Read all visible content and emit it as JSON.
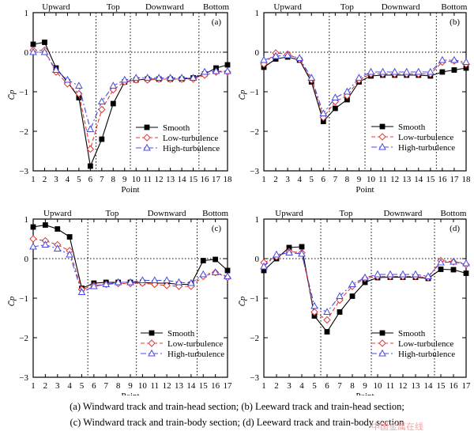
{
  "figure": {
    "caption_line1": "(a)  Windward track and train-head section; (b) Leeward track and train-head section;",
    "caption_line2": "(c)  Windward track and train-body section; (d) Leeward track and train-body section",
    "watermark": "中国金属在线",
    "colors": {
      "smooth": "#000000",
      "low": "#e03a3a",
      "high": "#4a4ae0",
      "ref": "#000000"
    }
  },
  "chart_data": [
    {
      "type": "line",
      "panel_label": "(a)",
      "xlabel": "Point",
      "ylabel": "C̄p",
      "x": [
        1,
        2,
        3,
        4,
        5,
        6,
        7,
        8,
        9,
        10,
        11,
        12,
        13,
        14,
        15,
        16,
        17,
        18
      ],
      "xlim": [
        1,
        18
      ],
      "ylim": [
        -3,
        1
      ],
      "yticks": [
        "1",
        "0",
        "−1",
        "−2",
        "−3"
      ],
      "dividers": [
        6.5,
        9.5,
        15.5
      ],
      "regions": [
        "Upward",
        "Top",
        "Downward",
        "Bottom"
      ],
      "region_centers": [
        3.0,
        8.0,
        12.5,
        17.0
      ],
      "legend_position": "center-right",
      "series": [
        {
          "name": "Smooth",
          "marker": "square",
          "dash": "solid",
          "values": [
            0.2,
            0.25,
            -0.4,
            -0.75,
            -1.15,
            -2.88,
            -2.2,
            -1.3,
            -0.75,
            -0.7,
            -0.68,
            -0.68,
            -0.68,
            -0.68,
            -0.65,
            -0.55,
            -0.4,
            -0.32
          ]
        },
        {
          "name": "Low-turbulence",
          "marker": "diamond",
          "dash": "dashed",
          "values": [
            0.05,
            0.05,
            -0.5,
            -0.8,
            -1.05,
            -2.45,
            -1.45,
            -0.95,
            -0.75,
            -0.7,
            -0.7,
            -0.68,
            -0.68,
            -0.68,
            -0.68,
            -0.58,
            -0.5,
            -0.5
          ]
        },
        {
          "name": "High-turbulence",
          "marker": "triangle",
          "dash": "dashdot",
          "values": [
            0.0,
            0.0,
            -0.45,
            -0.7,
            -0.85,
            -1.95,
            -1.25,
            -0.85,
            -0.7,
            -0.65,
            -0.65,
            -0.65,
            -0.65,
            -0.65,
            -0.65,
            -0.5,
            -0.48,
            -0.48
          ]
        }
      ]
    },
    {
      "type": "line",
      "panel_label": "(b)",
      "xlabel": "Point",
      "ylabel": "C̄p",
      "x": [
        1,
        2,
        3,
        4,
        5,
        6,
        7,
        8,
        9,
        10,
        11,
        12,
        13,
        14,
        15,
        16,
        17,
        18
      ],
      "xlim": [
        1,
        18
      ],
      "ylim": [
        -3,
        1
      ],
      "yticks": [
        "1",
        "0",
        "−1",
        "−2",
        "−3"
      ],
      "dividers": [
        6.5,
        9.5,
        15.5
      ],
      "regions": [
        "Upward",
        "Top",
        "Downward",
        "Bottom"
      ],
      "region_centers": [
        3.0,
        8.0,
        12.5,
        17.0
      ],
      "legend_position": "lower-right",
      "series": [
        {
          "name": "Smooth",
          "marker": "square",
          "dash": "solid",
          "values": [
            -0.38,
            -0.17,
            -0.12,
            -0.2,
            -0.75,
            -1.75,
            -1.42,
            -1.2,
            -0.75,
            -0.6,
            -0.58,
            -0.58,
            -0.58,
            -0.58,
            -0.6,
            -0.5,
            -0.45,
            -0.4
          ]
        },
        {
          "name": "Low-turbulence",
          "marker": "diamond",
          "dash": "dashed",
          "values": [
            -0.3,
            -0.02,
            -0.05,
            -0.18,
            -0.7,
            -1.65,
            -1.25,
            -1.1,
            -0.7,
            -0.55,
            -0.55,
            -0.55,
            -0.55,
            -0.55,
            -0.55,
            -0.25,
            -0.22,
            -0.3
          ]
        },
        {
          "name": "High-turbulence",
          "marker": "triangle",
          "dash": "dashdot",
          "values": [
            -0.2,
            -0.1,
            -0.08,
            -0.15,
            -0.65,
            -1.55,
            -1.15,
            -1.0,
            -0.65,
            -0.5,
            -0.5,
            -0.5,
            -0.5,
            -0.5,
            -0.5,
            -0.2,
            -0.2,
            -0.25
          ]
        }
      ]
    },
    {
      "type": "line",
      "panel_label": "(c)",
      "xlabel": "Point",
      "ylabel": "C̄p",
      "x": [
        1,
        2,
        3,
        4,
        5,
        6,
        7,
        8,
        9,
        10,
        11,
        12,
        13,
        14,
        15,
        16,
        17
      ],
      "xlim": [
        1,
        17
      ],
      "ylim": [
        -3,
        1
      ],
      "yticks": [
        "1",
        "0",
        "−1",
        "−2",
        "−3"
      ],
      "dividers": [
        5.5,
        9.5,
        14.5
      ],
      "regions": [
        "Upward",
        "Top",
        "Downward",
        "Bottom"
      ],
      "region_centers": [
        3.0,
        7.5,
        12.0,
        16.0
      ],
      "legend_position": "lower-right",
      "series": [
        {
          "name": "Smooth",
          "marker": "square",
          "dash": "solid",
          "values": [
            0.8,
            0.85,
            0.75,
            0.55,
            -0.75,
            -0.62,
            -0.6,
            -0.6,
            -0.6,
            -0.6,
            -0.62,
            -0.62,
            -0.65,
            -0.65,
            -0.05,
            -0.02,
            -0.3
          ]
        },
        {
          "name": "Low-turbulence",
          "marker": "diamond",
          "dash": "dashed",
          "values": [
            0.5,
            0.45,
            0.35,
            0.2,
            -0.78,
            -0.68,
            -0.65,
            -0.63,
            -0.63,
            -0.62,
            -0.65,
            -0.68,
            -0.7,
            -0.7,
            -0.45,
            -0.35,
            -0.48
          ]
        },
        {
          "name": "High-turbulence",
          "marker": "triangle",
          "dash": "dashdot",
          "values": [
            0.3,
            0.35,
            0.25,
            0.1,
            -0.85,
            -0.7,
            -0.65,
            -0.6,
            -0.6,
            -0.55,
            -0.55,
            -0.55,
            -0.6,
            -0.62,
            -0.4,
            -0.35,
            -0.45
          ]
        }
      ]
    },
    {
      "type": "line",
      "panel_label": "(d)",
      "xlabel": "Point",
      "ylabel": "C̄p",
      "x": [
        1,
        2,
        3,
        4,
        5,
        6,
        7,
        8,
        9,
        10,
        11,
        12,
        13,
        14,
        15,
        16,
        17
      ],
      "xlim": [
        1,
        17
      ],
      "ylim": [
        -3,
        1
      ],
      "yticks": [
        "1",
        "0",
        "−1",
        "−2",
        "−3"
      ],
      "dividers": [
        5.5,
        9.5,
        14.5
      ],
      "regions": [
        "Upward",
        "Top",
        "Downward",
        "Bottom"
      ],
      "region_centers": [
        3.0,
        7.5,
        12.0,
        16.0
      ],
      "legend_position": "lower-right",
      "series": [
        {
          "name": "Smooth",
          "marker": "square",
          "dash": "solid",
          "values": [
            -0.3,
            0.0,
            0.28,
            0.3,
            -1.45,
            -1.85,
            -1.35,
            -0.95,
            -0.6,
            -0.48,
            -0.47,
            -0.47,
            -0.47,
            -0.5,
            -0.27,
            -0.28,
            -0.37
          ]
        },
        {
          "name": "Low-turbulence",
          "marker": "diamond",
          "dash": "dashed",
          "values": [
            -0.1,
            0.05,
            0.18,
            0.15,
            -1.35,
            -1.55,
            -1.05,
            -0.7,
            -0.5,
            -0.45,
            -0.45,
            -0.45,
            -0.45,
            -0.48,
            -0.05,
            -0.08,
            -0.15
          ]
        },
        {
          "name": "High-turbulence",
          "marker": "triangle",
          "dash": "dashdot",
          "values": [
            -0.2,
            0.1,
            0.15,
            0.12,
            -1.2,
            -1.35,
            -0.95,
            -0.65,
            -0.48,
            -0.4,
            -0.4,
            -0.4,
            -0.4,
            -0.45,
            -0.1,
            -0.08,
            -0.12
          ]
        }
      ]
    }
  ]
}
